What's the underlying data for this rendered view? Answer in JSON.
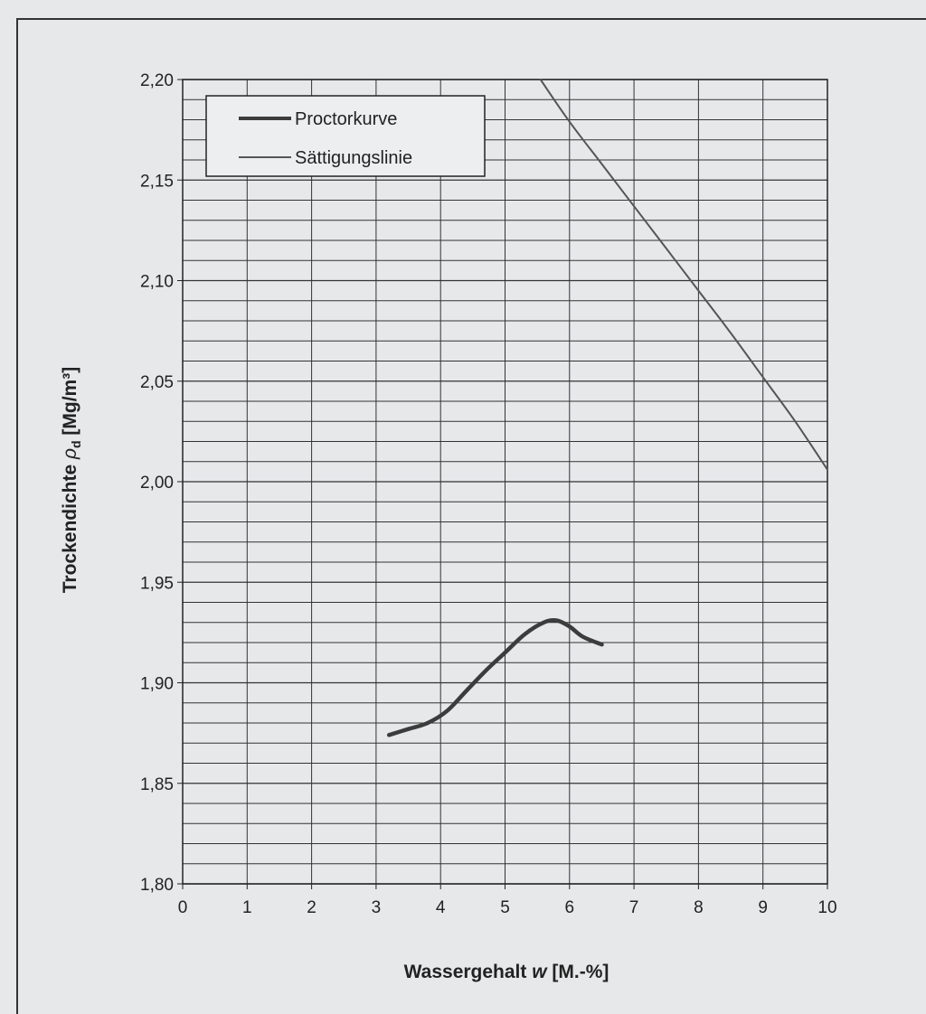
{
  "chart_data": {
    "type": "line",
    "xlabel_main": "Wassergehalt ",
    "xlabel_var": "w",
    "xlabel_unit": " [M.-%]",
    "ylabel_main": "Trockendichte ",
    "ylabel_var": "ρ",
    "ylabel_sub": "d",
    "ylabel_unit": " [Mg/m³]",
    "xlim": [
      0,
      10
    ],
    "ylim": [
      1.8,
      2.2
    ],
    "x_ticks": [
      "0",
      "1",
      "2",
      "3",
      "4",
      "5",
      "6",
      "7",
      "8",
      "9",
      "10"
    ],
    "y_ticks": [
      "1,80",
      "1,85",
      "1,90",
      "1,95",
      "2,00",
      "2,05",
      "2,10",
      "2,15",
      "2,20"
    ],
    "minor_y_step": 0.01,
    "grid": true,
    "legend_position": "top-left",
    "series": [
      {
        "name": "Proctorkurve",
        "color": "#3c3c3c",
        "x": [
          3.2,
          3.5,
          3.8,
          4.1,
          4.4,
          4.7,
          5.0,
          5.3,
          5.6,
          5.8,
          6.0,
          6.2,
          6.5
        ],
        "y": [
          1.874,
          1.877,
          1.88,
          1.886,
          1.896,
          1.906,
          1.915,
          1.924,
          1.93,
          1.931,
          1.928,
          1.923,
          1.919
        ]
      },
      {
        "name": "Sättigungslinie",
        "color": "#555555",
        "x": [
          5.55,
          6.0,
          6.5,
          7.0,
          7.5,
          8.0,
          8.5,
          9.0,
          9.5,
          10.0
        ],
        "y": [
          2.2,
          2.179,
          2.158,
          2.137,
          2.116,
          2.095,
          2.074,
          2.052,
          2.03,
          2.006
        ]
      }
    ]
  }
}
